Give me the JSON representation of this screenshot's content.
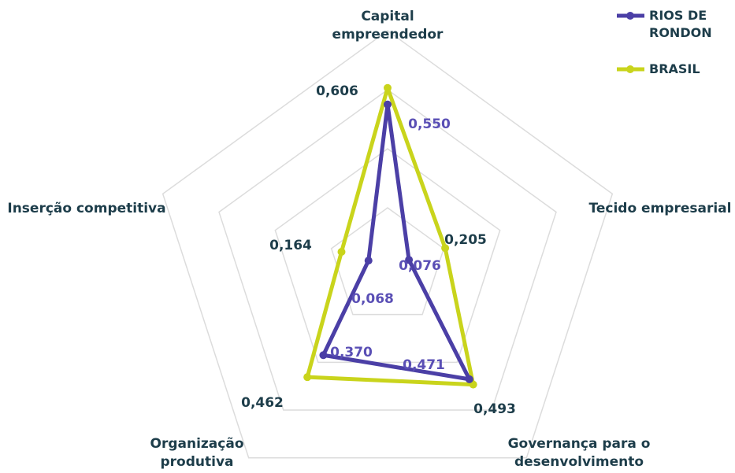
{
  "chart_data": {
    "type": "radar",
    "categories": [
      "Capital empreendedor",
      "Tecido empresarial",
      "Governança para o desenvolvimento",
      "Organização produtiva",
      "Inserção competitiva"
    ],
    "series": [
      {
        "name": "RIOS DE RONDON",
        "color": "#4b3fa6",
        "values": [
          0.55,
          0.076,
          0.471,
          0.37,
          0.068
        ],
        "value_labels": [
          "0,550",
          "0,076",
          "0,471",
          "0,370",
          "0,068"
        ]
      },
      {
        "name": "BRASIL",
        "color": "#c9d41c",
        "values": [
          0.606,
          0.205,
          0.493,
          0.462,
          0.164
        ],
        "value_labels": [
          "0,606",
          "0,205",
          "0,493",
          "0,462",
          "0,164"
        ]
      }
    ],
    "rlim": [
      0,
      0.8
    ],
    "rticks": [
      0.2,
      0.4,
      0.6,
      0.8
    ],
    "grid": true
  }
}
